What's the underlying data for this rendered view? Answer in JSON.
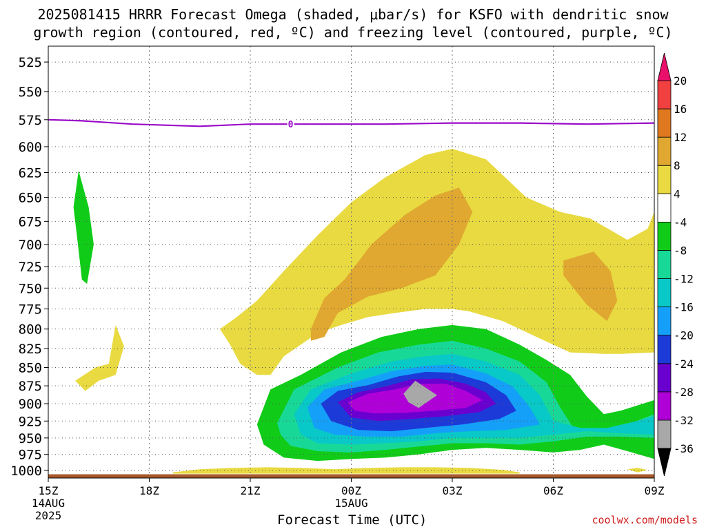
{
  "title_line1": "2025081415 HRRR Forecast Omega (shaded, μbar/s) for KSFO with dendritic snow",
  "title_line2": "growth region (contoured, red, ºC) and freezing level (contoured, purple, ºC)",
  "credit": "coolwx.com/models",
  "chart_data": {
    "type": "heatmap",
    "title": "2025081415 HRRR Forecast Omega (shaded, μbar/s) for KSFO with dendritic snow growth region (contoured, red, ºC) and freezing level (contoured, purple, ºC)",
    "xlabel": "Forecast Time (UTC)",
    "ylabel": "",
    "x_ticks": [
      {
        "hour": 0,
        "label": "15Z",
        "sub1": "14AUG",
        "sub2": "2025"
      },
      {
        "hour": 3,
        "label": "18Z"
      },
      {
        "hour": 6,
        "label": "21Z"
      },
      {
        "hour": 9,
        "label": "00Z",
        "sub1": "15AUG"
      },
      {
        "hour": 12,
        "label": "03Z"
      },
      {
        "hour": 15,
        "label": "06Z"
      },
      {
        "hour": 18,
        "label": "09Z"
      }
    ],
    "xlim": [
      0,
      18
    ],
    "y_ticks": [
      525,
      550,
      575,
      600,
      625,
      650,
      675,
      700,
      725,
      750,
      775,
      800,
      825,
      850,
      875,
      900,
      925,
      950,
      975,
      1000
    ],
    "ylim": [
      1012,
      512
    ],
    "y_scale": "log",
    "grid": true,
    "colorbar": {
      "levels": [
        -36,
        -32,
        -28,
        -24,
        -20,
        -16,
        -12,
        -8,
        -4,
        4,
        8,
        12,
        16,
        20
      ],
      "colors": [
        "#000000",
        "#a8a8a8",
        "#b000d8",
        "#6a00d0",
        "#1c3ad8",
        "#14a0f8",
        "#08c8c8",
        "#18d898",
        "#10cc18",
        "#ffffff",
        "#e8da40",
        "#e0a830",
        "#e07820",
        "#f04040",
        "#e8106a"
      ]
    },
    "freezing_level": {
      "label": "0",
      "color": "#9a08c8",
      "points": [
        [
          0,
          575
        ],
        [
          1,
          576
        ],
        [
          2.5,
          579
        ],
        [
          4.5,
          581
        ],
        [
          6,
          579
        ],
        [
          8,
          579
        ],
        [
          10,
          579
        ],
        [
          12,
          578
        ],
        [
          14,
          578
        ],
        [
          16,
          579
        ],
        [
          18,
          578
        ]
      ]
    },
    "shaded_regions": [
      {
        "name": "up-4-green-left",
        "color": "#10cc18",
        "points": [
          [
            0.9,
            623
          ],
          [
            1.2,
            660
          ],
          [
            1.35,
            700
          ],
          [
            1.15,
            745
          ],
          [
            1.0,
            740
          ],
          [
            0.85,
            690
          ],
          [
            0.75,
            660
          ]
        ]
      },
      {
        "name": "down-4-yellow-left",
        "color": "#e8da40",
        "points": [
          [
            0.8,
            868
          ],
          [
            1.4,
            850
          ],
          [
            1.8,
            845
          ],
          [
            2.0,
            795
          ],
          [
            2.25,
            822
          ],
          [
            2.0,
            860
          ],
          [
            1.5,
            868
          ],
          [
            1.1,
            882
          ]
        ]
      },
      {
        "name": "down-4-yellow-main",
        "color": "#e8da40",
        "points": [
          [
            5.1,
            800
          ],
          [
            5.6,
            785
          ],
          [
            6.2,
            765
          ],
          [
            7.0,
            730
          ],
          [
            8.0,
            690
          ],
          [
            9.0,
            655
          ],
          [
            10.0,
            630
          ],
          [
            11.2,
            608
          ],
          [
            12.0,
            602
          ],
          [
            13.0,
            612
          ],
          [
            14.2,
            650
          ],
          [
            15.2,
            665
          ],
          [
            16.1,
            672
          ],
          [
            17.2,
            695
          ],
          [
            17.8,
            683
          ],
          [
            18.0,
            665
          ],
          [
            18.0,
            830
          ],
          [
            17.0,
            832
          ],
          [
            16.5,
            832
          ],
          [
            15.5,
            830
          ],
          [
            14.5,
            810
          ],
          [
            13.5,
            790
          ],
          [
            12.5,
            778
          ],
          [
            12.0,
            775
          ],
          [
            11.2,
            775
          ],
          [
            10.3,
            780
          ],
          [
            9.5,
            785
          ],
          [
            8.7,
            795
          ],
          [
            8.0,
            805
          ],
          [
            7.5,
            820
          ],
          [
            7.0,
            835
          ],
          [
            6.6,
            860
          ],
          [
            6.2,
            860
          ],
          [
            5.7,
            845
          ],
          [
            5.4,
            820
          ]
        ]
      },
      {
        "name": "down-8-orange-main",
        "color": "#e0a830",
        "points": [
          [
            7.8,
            800
          ],
          [
            8.2,
            762
          ],
          [
            8.8,
            740
          ],
          [
            9.6,
            700
          ],
          [
            10.6,
            668
          ],
          [
            11.5,
            648
          ],
          [
            12.2,
            640
          ],
          [
            12.6,
            665
          ],
          [
            12.2,
            700
          ],
          [
            11.5,
            735
          ],
          [
            10.5,
            750
          ],
          [
            9.5,
            760
          ],
          [
            8.6,
            780
          ],
          [
            8.2,
            810
          ],
          [
            7.8,
            815
          ]
        ]
      },
      {
        "name": "down-8-orange-right",
        "color": "#e0a830",
        "points": [
          [
            15.3,
            718
          ],
          [
            16.2,
            708
          ],
          [
            16.7,
            730
          ],
          [
            16.9,
            765
          ],
          [
            16.6,
            790
          ],
          [
            16.0,
            770
          ],
          [
            15.6,
            750
          ],
          [
            15.3,
            735
          ]
        ]
      },
      {
        "name": "up-4-green-main",
        "color": "#10cc18",
        "points": [
          [
            6.2,
            930
          ],
          [
            6.6,
            880
          ],
          [
            7.5,
            860
          ],
          [
            8.7,
            830
          ],
          [
            9.9,
            810
          ],
          [
            11.0,
            800
          ],
          [
            12.0,
            795
          ],
          [
            13.0,
            800
          ],
          [
            14.0,
            820
          ],
          [
            14.8,
            840
          ],
          [
            15.5,
            860
          ],
          [
            16.0,
            890
          ],
          [
            16.5,
            915
          ],
          [
            17.0,
            910
          ],
          [
            18.0,
            895
          ],
          [
            18.0,
            982
          ],
          [
            17.2,
            970
          ],
          [
            16.5,
            960
          ],
          [
            15.8,
            968
          ],
          [
            15.0,
            972
          ],
          [
            14.0,
            968
          ],
          [
            13.0,
            965
          ],
          [
            12.0,
            968
          ],
          [
            11.0,
            975
          ],
          [
            10.0,
            980
          ],
          [
            9.0,
            982
          ],
          [
            8.0,
            985
          ],
          [
            7.0,
            980
          ],
          [
            6.4,
            960
          ]
        ]
      },
      {
        "name": "up-8-teal",
        "color": "#18d898",
        "points": [
          [
            6.8,
            928
          ],
          [
            7.3,
            880
          ],
          [
            8.6,
            850
          ],
          [
            9.8,
            830
          ],
          [
            11.0,
            820
          ],
          [
            12.0,
            815
          ],
          [
            13.0,
            825
          ],
          [
            14.0,
            842
          ],
          [
            14.8,
            870
          ],
          [
            15.2,
            905
          ],
          [
            15.6,
            935
          ],
          [
            16.5,
            940
          ],
          [
            17.2,
            930
          ],
          [
            18.0,
            915
          ],
          [
            18.0,
            950
          ],
          [
            17.0,
            948
          ],
          [
            16.0,
            948
          ],
          [
            15.0,
            955
          ],
          [
            14.0,
            960
          ],
          [
            13.0,
            958
          ],
          [
            12.0,
            958
          ],
          [
            11.0,
            963
          ],
          [
            10.0,
            968
          ],
          [
            9.0,
            972
          ],
          [
            8.0,
            970
          ],
          [
            7.2,
            962
          ],
          [
            6.9,
            945
          ]
        ]
      },
      {
        "name": "up-12-cyan",
        "color": "#08c8c8",
        "points": [
          [
            7.3,
            915
          ],
          [
            7.8,
            880
          ],
          [
            9.0,
            858
          ],
          [
            10.2,
            842
          ],
          [
            11.2,
            835
          ],
          [
            12.0,
            832
          ],
          [
            13.0,
            842
          ],
          [
            14.0,
            860
          ],
          [
            14.6,
            888
          ],
          [
            15.0,
            925
          ],
          [
            15.8,
            935
          ],
          [
            16.6,
            935
          ],
          [
            17.5,
            925
          ],
          [
            18.0,
            918
          ],
          [
            18.0,
            945
          ],
          [
            17.0,
            943
          ],
          [
            16.0,
            940
          ],
          [
            15.0,
            945
          ],
          [
            14.0,
            950
          ],
          [
            13.0,
            950
          ],
          [
            12.0,
            950
          ],
          [
            11.0,
            955
          ],
          [
            10.0,
            958
          ],
          [
            9.0,
            960
          ],
          [
            8.0,
            958
          ],
          [
            7.5,
            945
          ]
        ]
      },
      {
        "name": "up-16-sky",
        "color": "#14a0f8",
        "points": [
          [
            7.7,
            905
          ],
          [
            8.2,
            880
          ],
          [
            9.2,
            868
          ],
          [
            10.2,
            855
          ],
          [
            11.2,
            848
          ],
          [
            12.0,
            846
          ],
          [
            13.0,
            858
          ],
          [
            13.8,
            876
          ],
          [
            14.3,
            905
          ],
          [
            14.6,
            930
          ],
          [
            13.6,
            938
          ],
          [
            12.5,
            940
          ],
          [
            11.5,
            943
          ],
          [
            10.5,
            948
          ],
          [
            9.5,
            948
          ],
          [
            8.5,
            945
          ],
          [
            7.9,
            935
          ]
        ]
      },
      {
        "name": "up-20-blue",
        "color": "#1c3ad8",
        "points": [
          [
            8.1,
            900
          ],
          [
            8.6,
            882
          ],
          [
            9.5,
            874
          ],
          [
            10.4,
            862
          ],
          [
            11.2,
            856
          ],
          [
            12.0,
            857
          ],
          [
            13.0,
            870
          ],
          [
            13.6,
            888
          ],
          [
            13.9,
            910
          ],
          [
            13.4,
            922
          ],
          [
            12.3,
            930
          ],
          [
            11.2,
            935
          ],
          [
            10.2,
            940
          ],
          [
            9.2,
            938
          ],
          [
            8.4,
            925
          ]
        ]
      },
      {
        "name": "up-24-indigo",
        "color": "#6a00d0",
        "points": [
          [
            8.6,
            898
          ],
          [
            9.2,
            884
          ],
          [
            10.0,
            876
          ],
          [
            10.8,
            866
          ],
          [
            11.6,
            865
          ],
          [
            12.4,
            872
          ],
          [
            13.0,
            884
          ],
          [
            13.3,
            900
          ],
          [
            12.8,
            912
          ],
          [
            11.8,
            918
          ],
          [
            10.8,
            922
          ],
          [
            9.8,
            925
          ],
          [
            9.0,
            920
          ]
        ]
      },
      {
        "name": "up-28-purple",
        "color": "#b000d8",
        "points": [
          [
            8.9,
            898
          ],
          [
            9.5,
            886
          ],
          [
            10.3,
            880
          ],
          [
            11.0,
            872
          ],
          [
            11.8,
            872
          ],
          [
            12.4,
            882
          ],
          [
            12.9,
            895
          ],
          [
            12.4,
            906
          ],
          [
            11.5,
            910
          ],
          [
            10.6,
            913
          ],
          [
            9.7,
            914
          ],
          [
            9.1,
            910
          ]
        ]
      },
      {
        "name": "up-32-gray",
        "color": "#a8a8a8",
        "points": [
          [
            10.55,
            886
          ],
          [
            10.9,
            868
          ],
          [
            11.55,
            888
          ],
          [
            11.0,
            906
          ],
          [
            10.7,
            898
          ]
        ]
      },
      {
        "name": "down-4-yellow-surface",
        "color": "#e8da40",
        "points": [
          [
            3.7,
            1003
          ],
          [
            4.5,
            998
          ],
          [
            5.5,
            996
          ],
          [
            6.5,
            995
          ],
          [
            7.5,
            996
          ],
          [
            8.5,
            998
          ],
          [
            9.5,
            996
          ],
          [
            10.5,
            995
          ],
          [
            11.5,
            995
          ],
          [
            12.5,
            996
          ],
          [
            13.5,
            999
          ],
          [
            14.0,
            1003
          ],
          [
            14.0,
            1005
          ],
          [
            3.7,
            1005
          ]
        ]
      },
      {
        "name": "down-4-yellow-small",
        "color": "#e8da40",
        "points": [
          [
            17.2,
            998
          ],
          [
            17.5,
            996
          ],
          [
            17.8,
            999
          ],
          [
            17.5,
            1003
          ]
        ]
      }
    ],
    "terrain": {
      "color": "#a8582a",
      "pressure": 1006
    }
  }
}
